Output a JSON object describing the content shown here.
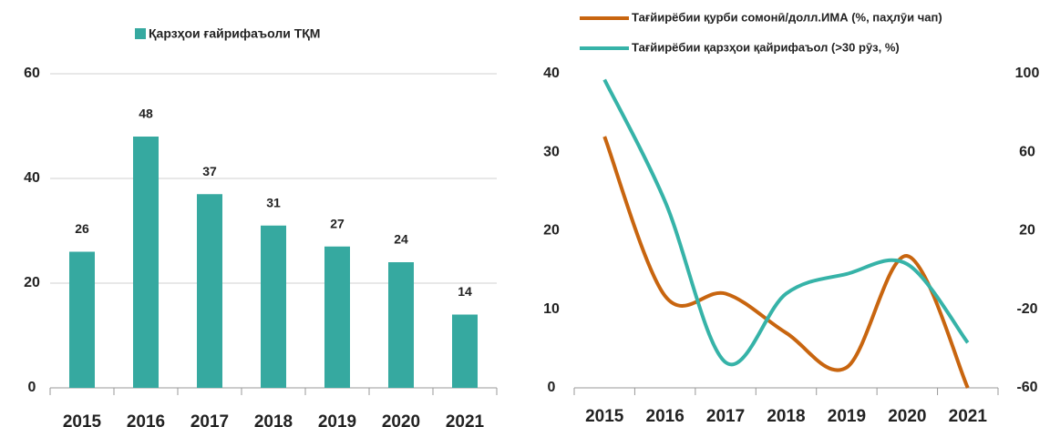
{
  "chart_data": [
    {
      "type": "bar",
      "categories": [
        "2015",
        "2016",
        "2017",
        "2018",
        "2019",
        "2020",
        "2021"
      ],
      "series": [
        {
          "name": "Қарзҳои ғайрифаъоли ТҚМ",
          "color": "#36a9a0",
          "values": [
            26,
            48,
            37,
            31,
            27,
            24,
            14
          ]
        }
      ],
      "ylim": [
        0,
        60
      ],
      "yticks": [
        0,
        20,
        40,
        60
      ],
      "grid": true
    },
    {
      "type": "line",
      "categories": [
        "2015",
        "2016",
        "2017",
        "2018",
        "2019",
        "2020",
        "2021"
      ],
      "series": [
        {
          "name": "Тағйирёбии қурби сомонӣ/долл.ИМА (%, паҳлӯи чап)",
          "color": "#c8650f",
          "values": [
            32,
            11.7,
            12,
            7,
            2.6,
            16.8,
            0
          ]
        },
        {
          "name": "Тағйирёбии қарзҳои қайрифаъол (>30 рӯз, %)",
          "color": "#36b3a8",
          "axis": "y2",
          "values": [
            97,
            35,
            -47,
            -12,
            -2,
            3,
            -37
          ]
        }
      ],
      "ylim": [
        0,
        40
      ],
      "yticks": [
        0,
        10,
        20,
        30,
        40
      ],
      "y2lim": [
        -60,
        100
      ],
      "y2ticks": [
        -60,
        -20,
        20,
        60,
        100
      ],
      "grid": false
    }
  ]
}
